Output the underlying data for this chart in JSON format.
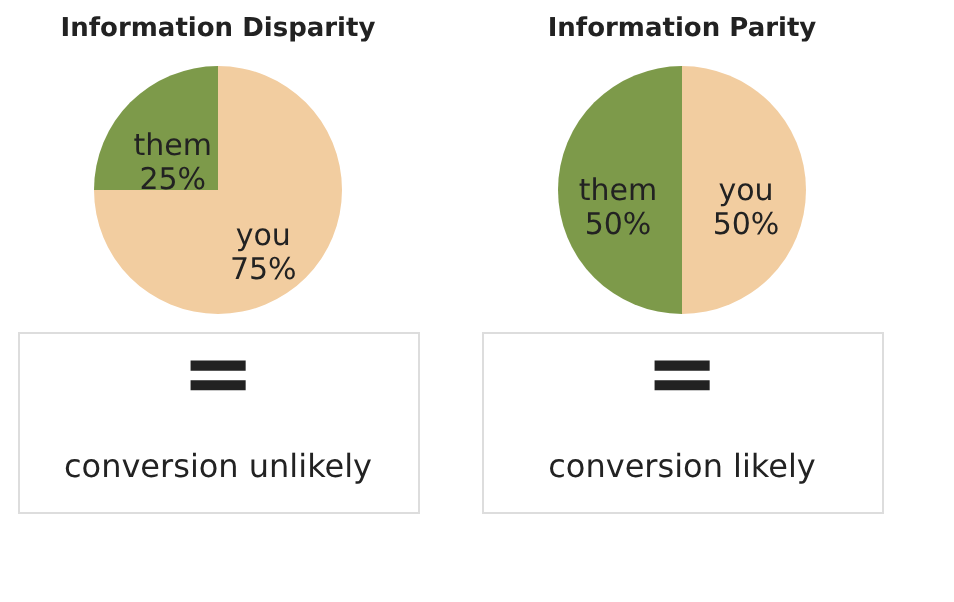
{
  "chart_data": [
    {
      "type": "pie",
      "title": "Information Disparity",
      "categories": [
        "you",
        "them"
      ],
      "values": [
        75,
        25
      ],
      "colors": [
        "#f2cda0",
        "#7d9a4a"
      ],
      "value_labels": [
        "75%",
        "25%"
      ],
      "annotations": [
        "=",
        "conversion unlikely"
      ]
    },
    {
      "type": "pie",
      "title": "Information Parity",
      "categories": [
        "you",
        "them"
      ],
      "values": [
        50,
        50
      ],
      "colors": [
        "#f2cda0",
        "#7d9a4a"
      ],
      "value_labels": [
        "50%",
        "50%"
      ],
      "annotations": [
        "=",
        "conversion likely"
      ]
    }
  ]
}
